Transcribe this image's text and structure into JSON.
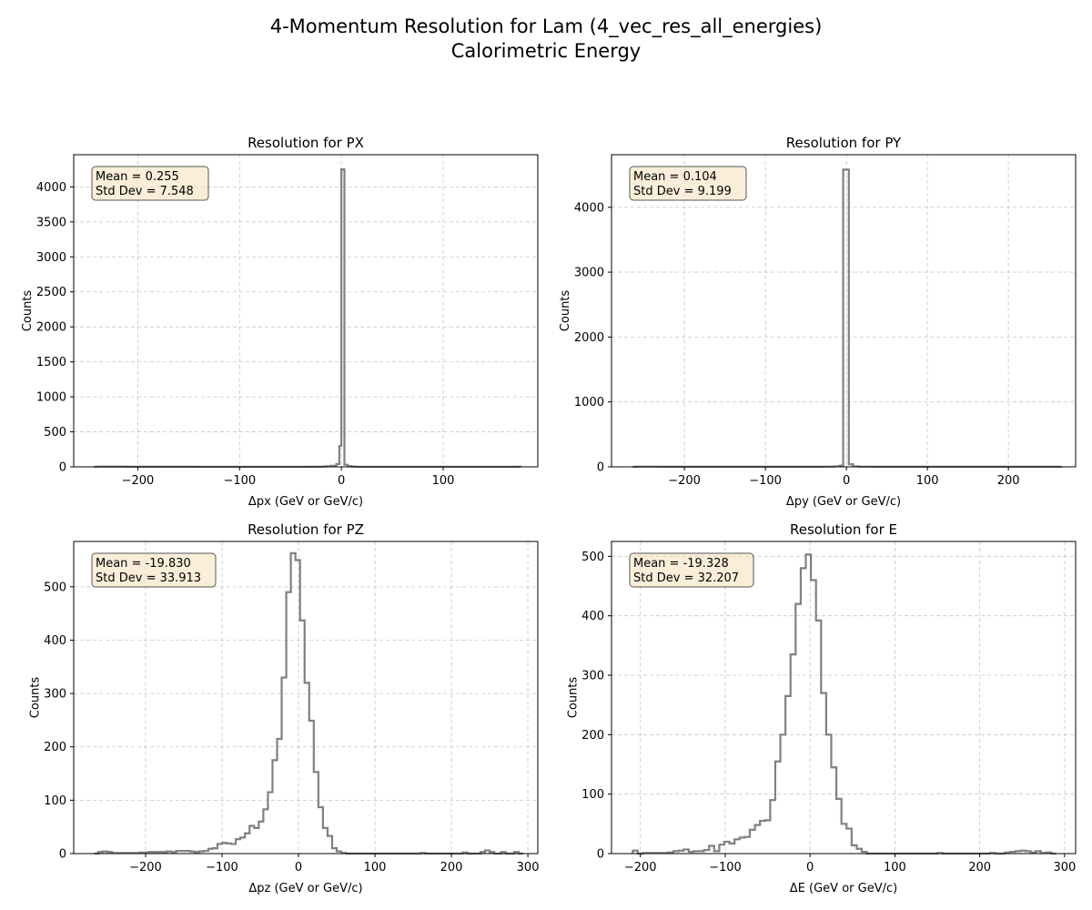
{
  "figure": {
    "title_line1": "4-Momentum Resolution for Lam (4_vec_res_all_energies)",
    "title_line2": "Calorimetric Energy"
  },
  "chart_data": [
    {
      "type": "histogram",
      "title": "Resolution for PX",
      "xlabel": "Δpx (GeV or GeV/c)",
      "ylabel": "Counts",
      "xlim": [
        -263,
        193
      ],
      "ylim": [
        0,
        4460
      ],
      "xticks": [
        -200,
        -100,
        0,
        100
      ],
      "yticks": [
        0,
        500,
        1000,
        1500,
        2000,
        2500,
        3000,
        3500,
        4000
      ],
      "grid": true,
      "stats": {
        "mean": "Mean = 0.255",
        "std": "Std Dev = 7.548"
      },
      "series_color": "#808080",
      "bins": [
        [
          -243,
          0
        ],
        [
          -240,
          3
        ],
        [
          -215,
          2
        ],
        [
          -205,
          2
        ],
        [
          -195,
          2
        ],
        [
          -150,
          2
        ],
        [
          -146,
          0
        ],
        [
          -30,
          2
        ],
        [
          -20,
          3
        ],
        [
          -15,
          8
        ],
        [
          -10,
          15
        ],
        [
          -5,
          40
        ],
        [
          -2,
          300
        ],
        [
          0,
          4250
        ],
        [
          3,
          30
        ],
        [
          6,
          10
        ],
        [
          10,
          3
        ],
        [
          15,
          0
        ],
        [
          170,
          2
        ]
      ]
    },
    {
      "type": "histogram",
      "title": "Resolution for PY",
      "xlabel": "Δpy (GeV or GeV/c)",
      "ylabel": "Counts",
      "xlim": [
        -290,
        283
      ],
      "ylim": [
        0,
        4810
      ],
      "xticks": [
        -200,
        -100,
        0,
        100,
        200
      ],
      "yticks": [
        0,
        1000,
        2000,
        3000,
        4000
      ],
      "grid": true,
      "stats": {
        "mean": "Mean = 0.104",
        "std": "Std Dev = 9.199"
      },
      "series_color": "#808080",
      "bins": [
        [
          -264,
          0
        ],
        [
          -260,
          3
        ],
        [
          -230,
          2
        ],
        [
          -150,
          2
        ],
        [
          -60,
          2
        ],
        [
          -30,
          3
        ],
        [
          -15,
          8
        ],
        [
          -8,
          20
        ],
        [
          -4,
          4580
        ],
        [
          3,
          40
        ],
        [
          8,
          8
        ],
        [
          15,
          3
        ],
        [
          30,
          2
        ],
        [
          115,
          2
        ],
        [
          160,
          2
        ],
        [
          200,
          2
        ],
        [
          260,
          0
        ]
      ]
    },
    {
      "type": "histogram",
      "title": "Resolution for PZ",
      "xlabel": "Δpz (GeV or GeV/c)",
      "ylabel": "Counts",
      "xlim": [
        -294,
        313
      ],
      "ylim": [
        0,
        585
      ],
      "xticks": [
        -200,
        -100,
        0,
        100,
        200,
        300
      ],
      "yticks": [
        0,
        100,
        200,
        300,
        400,
        500
      ],
      "grid": true,
      "stats": {
        "mean": "Mean = -19.830",
        "std": "Std Dev = 33.913"
      },
      "series_color": "#808080",
      "bins": [
        [
          -267,
          0
        ],
        [
          -262,
          3
        ],
        [
          -256,
          4
        ],
        [
          -250,
          3
        ],
        [
          -244,
          1
        ],
        [
          -238,
          1
        ],
        [
          -232,
          1
        ],
        [
          -220,
          1
        ],
        [
          -208,
          2
        ],
        [
          -196,
          3
        ],
        [
          -184,
          3
        ],
        [
          -178,
          3
        ],
        [
          -172,
          4
        ],
        [
          -166,
          3
        ],
        [
          -160,
          5
        ],
        [
          -148,
          5
        ],
        [
          -142,
          4
        ],
        [
          -136,
          3
        ],
        [
          -130,
          4
        ],
        [
          -124,
          5
        ],
        [
          -118,
          9
        ],
        [
          -112,
          10
        ],
        [
          -106,
          18
        ],
        [
          -100,
          20
        ],
        [
          -94,
          19
        ],
        [
          -88,
          18
        ],
        [
          -82,
          27
        ],
        [
          -76,
          30
        ],
        [
          -70,
          38
        ],
        [
          -64,
          52
        ],
        [
          -58,
          48
        ],
        [
          -52,
          60
        ],
        [
          -46,
          83
        ],
        [
          -40,
          115
        ],
        [
          -34,
          175
        ],
        [
          -28,
          215
        ],
        [
          -22,
          330
        ],
        [
          -16,
          490
        ],
        [
          -10,
          563
        ],
        [
          -4,
          550
        ],
        [
          2,
          437
        ],
        [
          8,
          320
        ],
        [
          14,
          249
        ],
        [
          20,
          153
        ],
        [
          26,
          87
        ],
        [
          32,
          48
        ],
        [
          38,
          33
        ],
        [
          44,
          10
        ],
        [
          50,
          4
        ],
        [
          56,
          1
        ],
        [
          62,
          0
        ],
        [
          160,
          1
        ],
        [
          166,
          0
        ],
        [
          215,
          2
        ],
        [
          221,
          0
        ],
        [
          238,
          3
        ],
        [
          244,
          6
        ],
        [
          250,
          3
        ],
        [
          256,
          0
        ],
        [
          265,
          3
        ],
        [
          271,
          0
        ],
        [
          282,
          3
        ],
        [
          288,
          0
        ]
      ]
    },
    {
      "type": "histogram",
      "title": "Resolution for E",
      "xlabel": "ΔE (GeV or GeV/c)",
      "ylabel": "Counts",
      "xlim": [
        -234,
        313
      ],
      "ylim": [
        0,
        525
      ],
      "xticks": [
        -200,
        -100,
        0,
        100,
        200,
        300
      ],
      "yticks": [
        0,
        100,
        200,
        300,
        400,
        500
      ],
      "grid": true,
      "stats": {
        "mean": "Mean = -19.328",
        "std": "Std Dev = 32.207"
      },
      "series_color": "#808080",
      "bins": [
        [
          -209,
          5
        ],
        [
          -203,
          0
        ],
        [
          -197,
          1
        ],
        [
          -191,
          1
        ],
        [
          -179,
          1
        ],
        [
          -167,
          2
        ],
        [
          -161,
          4
        ],
        [
          -155,
          5
        ],
        [
          -149,
          7
        ],
        [
          -143,
          3
        ],
        [
          -137,
          4
        ],
        [
          -131,
          4
        ],
        [
          -125,
          6
        ],
        [
          -119,
          13
        ],
        [
          -113,
          4
        ],
        [
          -107,
          15
        ],
        [
          -101,
          20
        ],
        [
          -95,
          17
        ],
        [
          -89,
          24
        ],
        [
          -83,
          27
        ],
        [
          -77,
          28
        ],
        [
          -71,
          40
        ],
        [
          -65,
          48
        ],
        [
          -59,
          55
        ],
        [
          -53,
          56
        ],
        [
          -47,
          90
        ],
        [
          -41,
          155
        ],
        [
          -35,
          200
        ],
        [
          -29,
          265
        ],
        [
          -23,
          335
        ],
        [
          -17,
          420
        ],
        [
          -11,
          480
        ],
        [
          -5,
          503
        ],
        [
          1,
          460
        ],
        [
          7,
          392
        ],
        [
          13,
          270
        ],
        [
          19,
          200
        ],
        [
          25,
          145
        ],
        [
          31,
          92
        ],
        [
          37,
          50
        ],
        [
          43,
          42
        ],
        [
          49,
          14
        ],
        [
          55,
          8
        ],
        [
          61,
          3
        ],
        [
          67,
          0
        ],
        [
          150,
          1
        ],
        [
          156,
          0
        ],
        [
          212,
          1
        ],
        [
          218,
          0
        ],
        [
          230,
          2
        ],
        [
          236,
          3
        ],
        [
          242,
          4
        ],
        [
          248,
          5
        ],
        [
          254,
          4
        ],
        [
          260,
          2
        ],
        [
          266,
          4
        ],
        [
          272,
          1
        ],
        [
          278,
          2
        ],
        [
          284,
          0
        ]
      ]
    }
  ]
}
